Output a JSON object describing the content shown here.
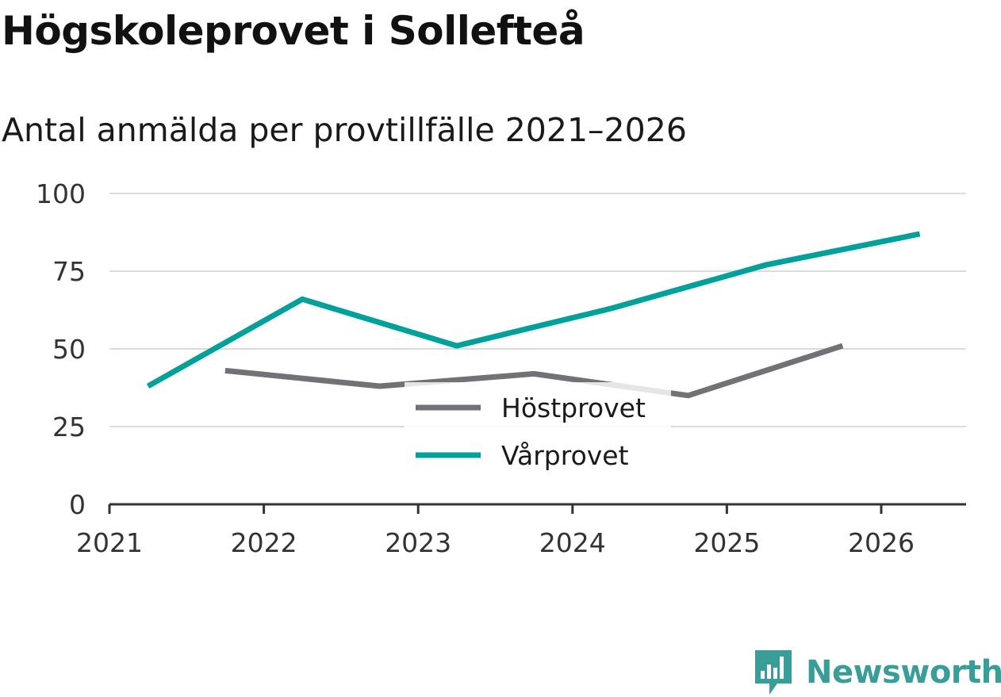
{
  "title": "Högskoleprovet i Sollefteå",
  "subtitle": "Antal anmälda per provtillfälle 2021–2026",
  "brand": {
    "name": "Newsworthy",
    "color": "#3a9e98",
    "icon": "newsworthy-logo-icon"
  },
  "chart_data": {
    "type": "line",
    "title": "Högskoleprovet i Sollefteå",
    "subtitle": "Antal anmälda per provtillfälle 2021–2026",
    "xlabel": "",
    "ylabel": "",
    "ylim": [
      0,
      100
    ],
    "xlim": [
      2021,
      2026.55
    ],
    "grid": true,
    "yticks": [
      0,
      25,
      50,
      75,
      100
    ],
    "xticks": [
      2021,
      2022,
      2023,
      2024,
      2025,
      2026
    ],
    "legend_position": "center",
    "series": [
      {
        "name": "Höstprovet",
        "color": "#727176",
        "x": [
          2021.75,
          2022.75,
          2023.75,
          2024.75,
          2025.75
        ],
        "y": [
          43,
          38,
          42,
          35,
          51
        ]
      },
      {
        "name": "Vårprovet",
        "color": "#00a19a",
        "x": [
          2021.25,
          2022.25,
          2023.25,
          2024.25,
          2025.25,
          2026.25
        ],
        "y": [
          38,
          66,
          51,
          63,
          77,
          87
        ]
      }
    ]
  }
}
